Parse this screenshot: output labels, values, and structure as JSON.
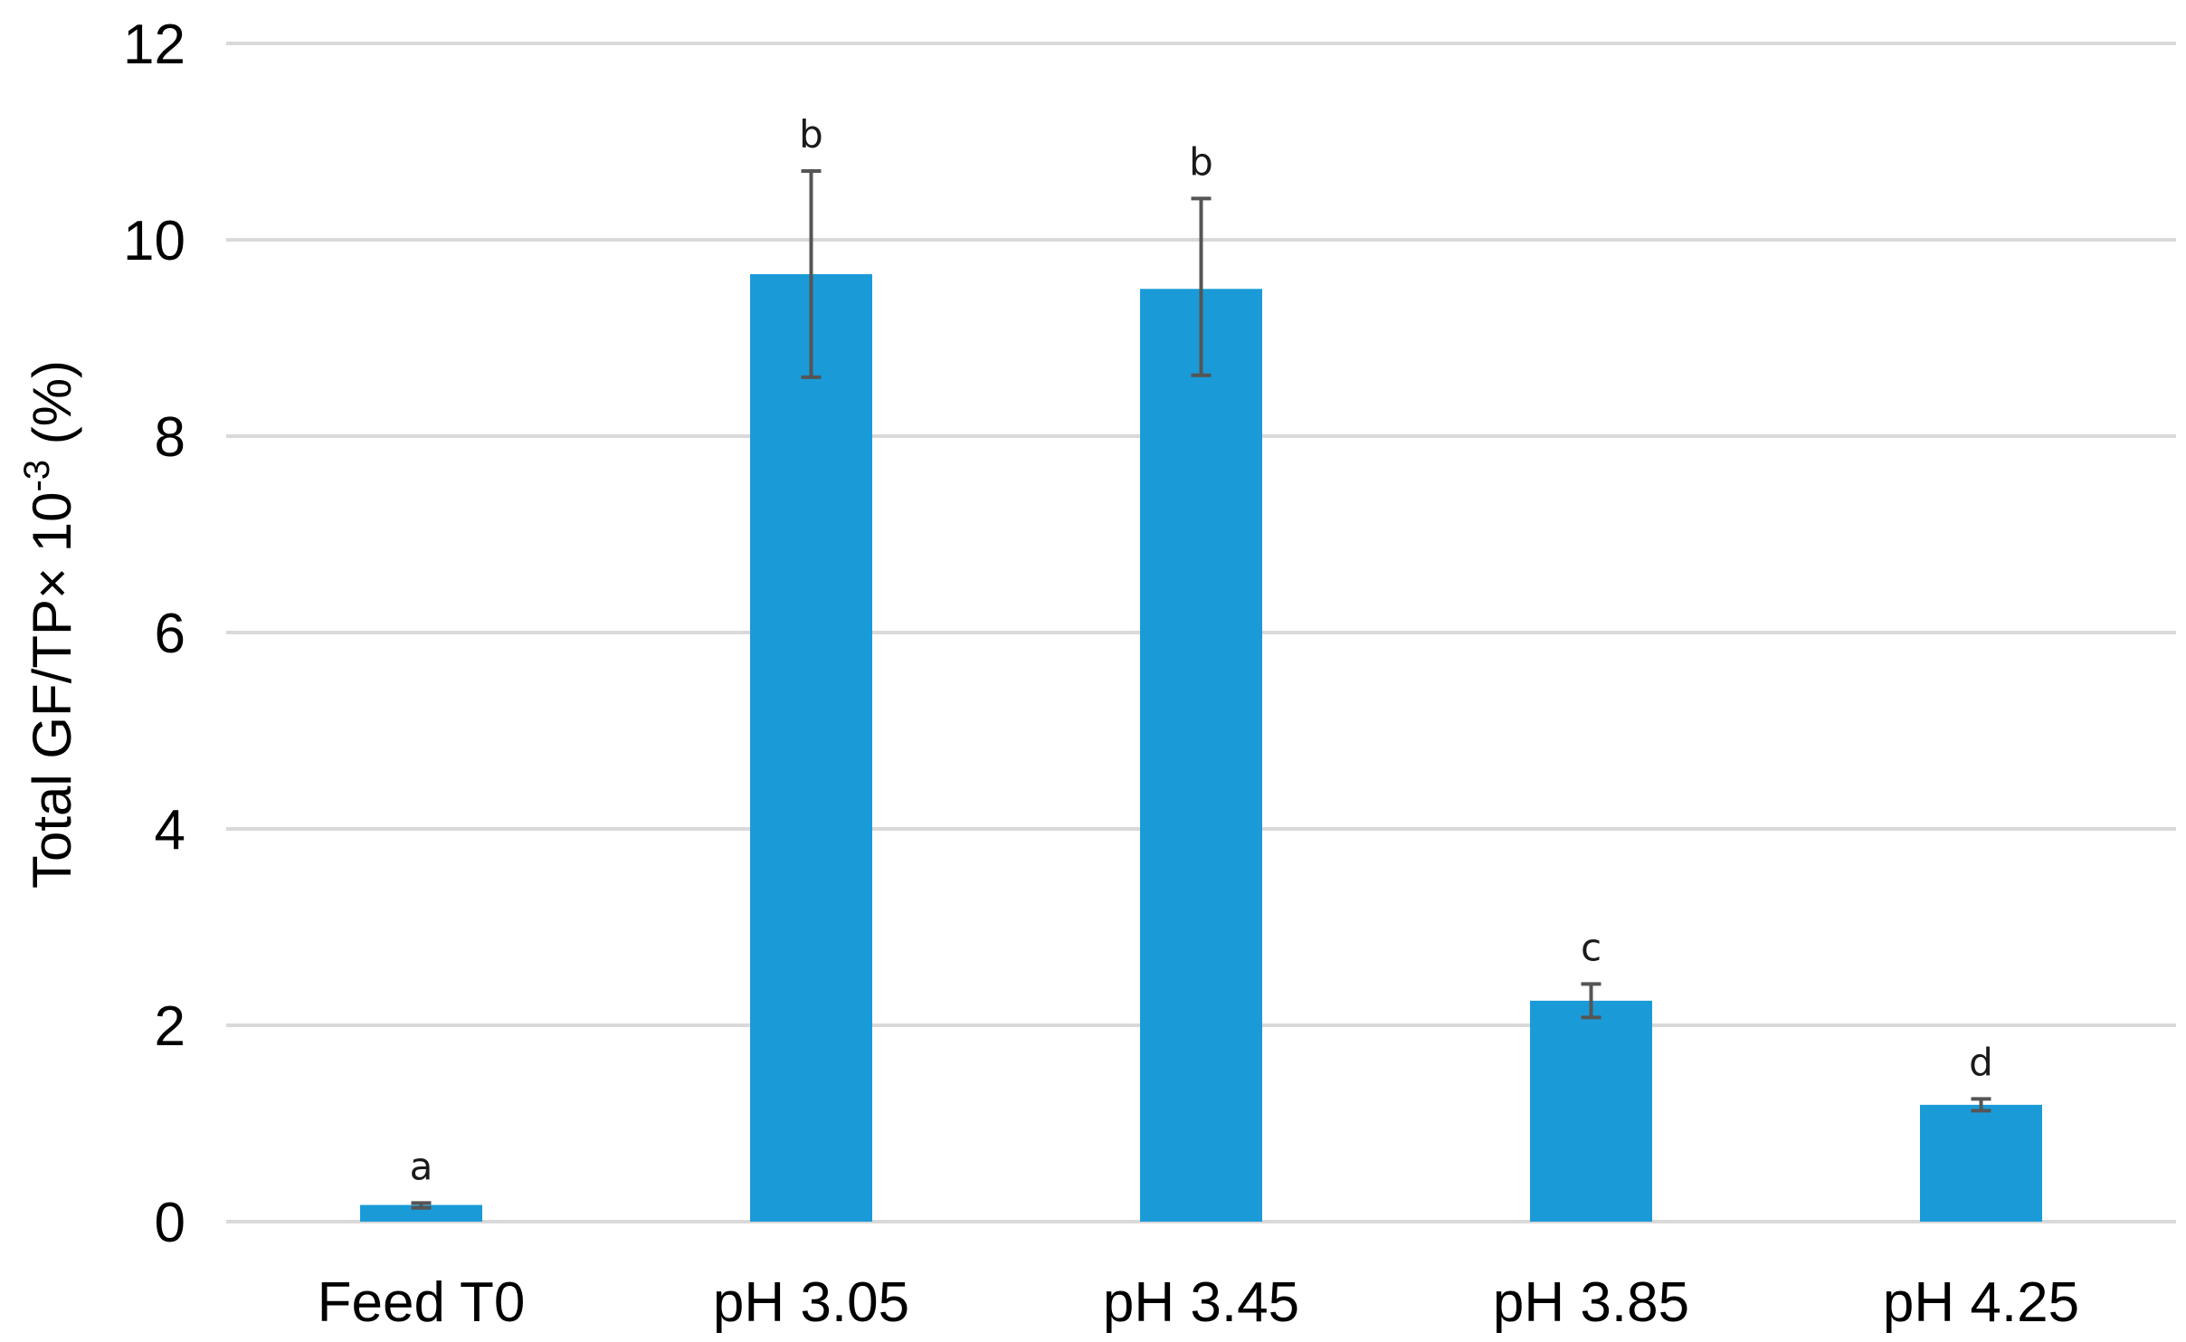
{
  "chart_data": {
    "type": "bar",
    "title": "",
    "xlabel": "",
    "ylabel": "Total GF/TP× 10",
    "ylabel_superscript": "-3",
    "ylabel_suffix": " (%)",
    "ylim": [
      0,
      12
    ],
    "yticks": [
      0,
      2,
      4,
      6,
      8,
      10,
      12
    ],
    "grid": true,
    "legend": "none",
    "bar_color": "#1a9bd7",
    "errorbar_color": "#555555",
    "gridline_color": "#d9d9d9",
    "categories": [
      "Feed T0",
      "pH 3.05",
      "pH 3.45",
      "pH 3.85",
      "pH 4.25"
    ],
    "values": [
      0.17,
      9.65,
      9.5,
      2.25,
      1.19
    ],
    "error_low": [
      0.14,
      8.6,
      8.62,
      2.08,
      1.13
    ],
    "error_high": [
      0.19,
      10.7,
      10.42,
      2.42,
      1.25
    ],
    "significance_labels": [
      "a",
      "b",
      "b",
      "c",
      "d"
    ]
  }
}
